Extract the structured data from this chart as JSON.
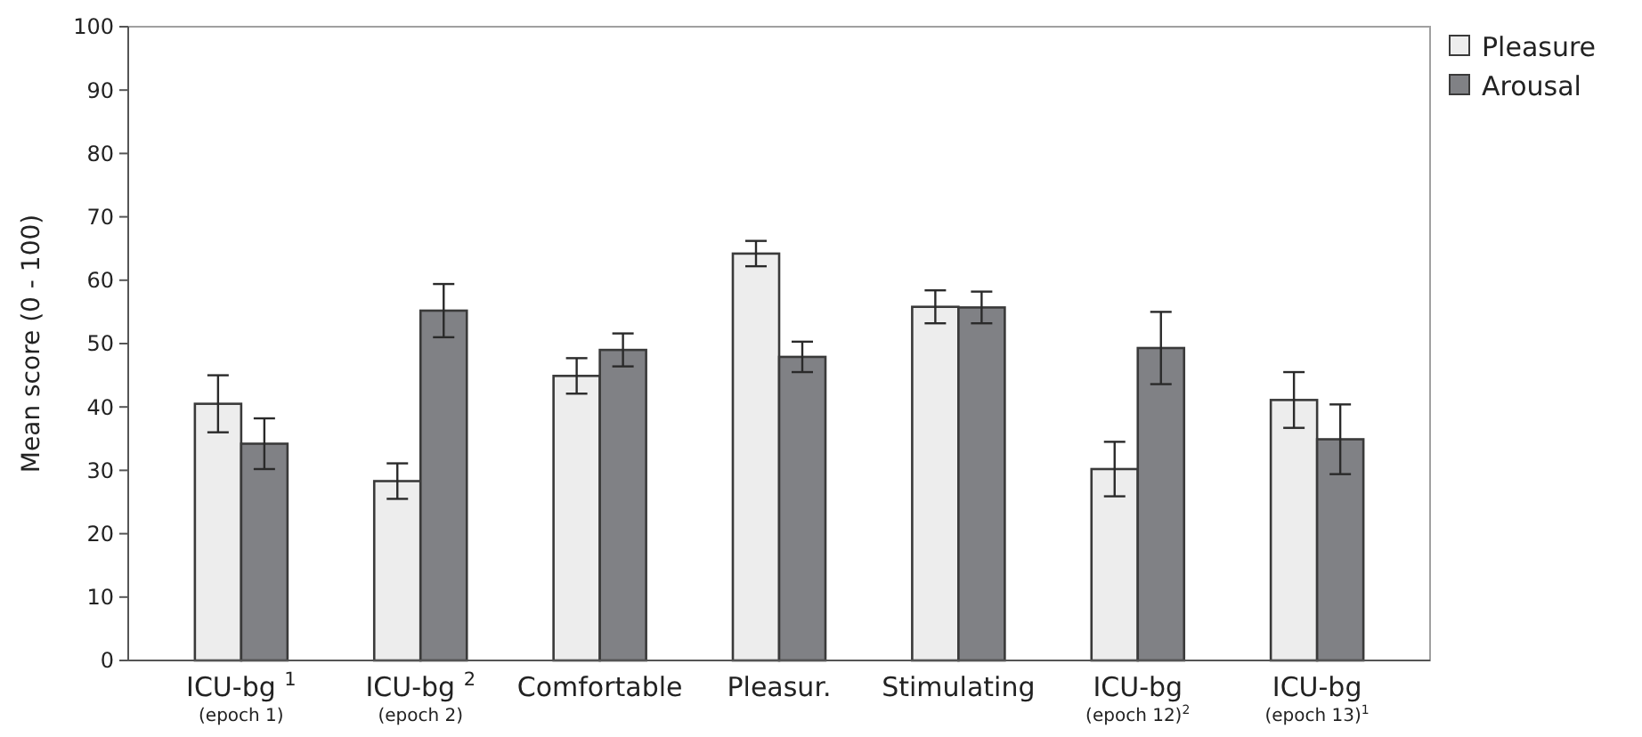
{
  "chart_data": {
    "type": "bar",
    "ylabel": "Mean score (0 - 100)",
    "categories": [
      "ICU-bg $^{1}$\n(epoch 1)",
      "ICU-bg $^{2}$\n(epoch 2)",
      "Comfortable",
      "Pleasur.",
      "Stimulating",
      "ICU-bg\n(epoch 12)$^{2}$",
      "ICU-bg\n(epoch 13)$^{1}$"
    ],
    "series": [
      {
        "name": "Pleasure",
        "color": "#ededed",
        "values": [
          40.5,
          28.3,
          44.9,
          64.2,
          55.8,
          30.2,
          41.1
        ],
        "errors": [
          4.5,
          2.8,
          2.8,
          2,
          2.6,
          4.3,
          4.4
        ]
      },
      {
        "name": "Arousal",
        "color": "#808185",
        "values": [
          34.2,
          55.2,
          49,
          47.9,
          55.7,
          49.3,
          34.9
        ],
        "errors": [
          4,
          4.2,
          2.6,
          2.4,
          2.5,
          5.7,
          5.5
        ]
      }
    ],
    "ylim": [
      0,
      100
    ],
    "yticks": [
      0,
      10,
      20,
      30,
      40,
      50,
      60,
      70,
      80,
      90,
      100
    ],
    "grid": false,
    "legend": "top right"
  }
}
